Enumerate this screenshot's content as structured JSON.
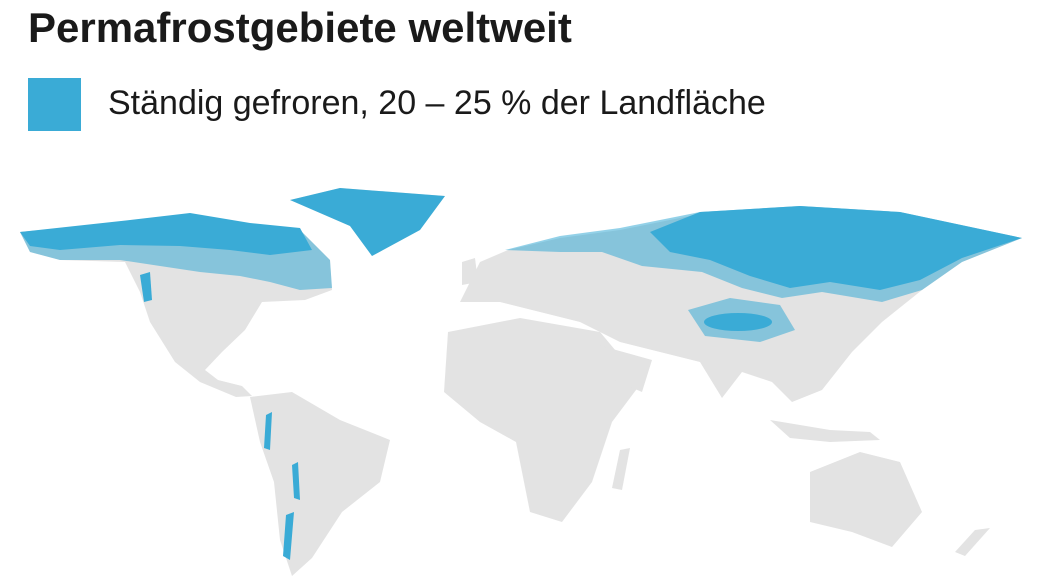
{
  "title": "Permafrostgebiete weltweit",
  "legend": {
    "label": "Ständig gefroren, 20 – 25 % der Landfläche",
    "color": "#3aabd6"
  }
}
